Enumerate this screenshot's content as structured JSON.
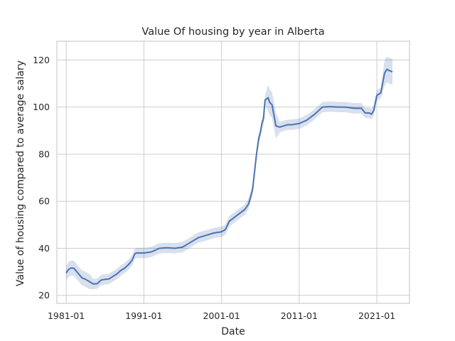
{
  "chart_data": {
    "type": "line",
    "title": "Value Of housing by year in Alberta",
    "xlabel": "Date",
    "ylabel": "Value of housing compared to average salary",
    "x_ticks": [
      "1981-01",
      "1991-01",
      "2001-01",
      "2011-01",
      "2021-01"
    ],
    "y_ticks": [
      20,
      40,
      60,
      80,
      100,
      120
    ],
    "xlim": [
      1979.8,
      2025.2
    ],
    "ylim": [
      16.6,
      128.0
    ],
    "grid": true,
    "colors": {
      "line": "#4c72b0",
      "band": "#4c72b0",
      "grid": "#cccccc",
      "frame": "#cccccc",
      "background": "#ffffff"
    },
    "series": [
      {
        "x": [
          1981.0,
          1981.3,
          1981.6,
          1982.0,
          1982.5,
          1983.0,
          1983.5,
          1984.0,
          1984.5,
          1985.0,
          1985.5,
          1986.0,
          1986.5,
          1987.0,
          1987.5,
          1988.0,
          1988.5,
          1989.0,
          1989.5,
          1989.8,
          1990.0,
          1990.5,
          1991.0,
          1992.0,
          1993.0,
          1994.0,
          1995.0,
          1996.0,
          1997.0,
          1998.0,
          1999.0,
          2000.0,
          2001.0,
          2001.5,
          2002.0,
          2003.0,
          2004.0,
          2004.5,
          2005.0,
          2005.5,
          2005.8,
          2006.0,
          2006.2,
          2006.4,
          2006.6,
          2007.0,
          2007.2,
          2007.5,
          2008.0,
          2008.5,
          2009.0,
          2009.5,
          2010.0,
          2011.0,
          2012.0,
          2013.0,
          2014.0,
          2015.0,
          2016.0,
          2017.0,
          2018.0,
          2019.0,
          2019.5,
          2020.0,
          2020.3,
          2020.6,
          2021.0,
          2021.5,
          2022.0,
          2022.3,
          2022.6,
          2023.0
        ],
        "y": [
          29.5,
          31.0,
          31.6,
          31.5,
          29.5,
          27.5,
          26.8,
          25.8,
          24.8,
          25.0,
          26.5,
          26.8,
          27.0,
          28.0,
          29.0,
          30.5,
          31.5,
          33.0,
          35.0,
          37.5,
          38.0,
          38.0,
          38.0,
          38.5,
          40.0,
          40.2,
          40.0,
          40.5,
          42.5,
          44.5,
          45.5,
          46.5,
          47.0,
          48.0,
          51.5,
          54.0,
          56.5,
          59.0,
          65.0,
          80.0,
          87.0,
          89.0,
          93.0,
          95.0,
          103.0,
          104.0,
          102.0,
          101.0,
          92.0,
          91.5,
          92.0,
          92.5,
          92.5,
          93.0,
          94.5,
          97.0,
          100.0,
          100.2,
          100.0,
          100.0,
          99.5,
          99.5,
          97.5,
          97.5,
          97.0,
          98.5,
          105.0,
          106.0,
          114.5,
          116.0,
          115.5,
          115.0
        ]
      }
    ]
  }
}
